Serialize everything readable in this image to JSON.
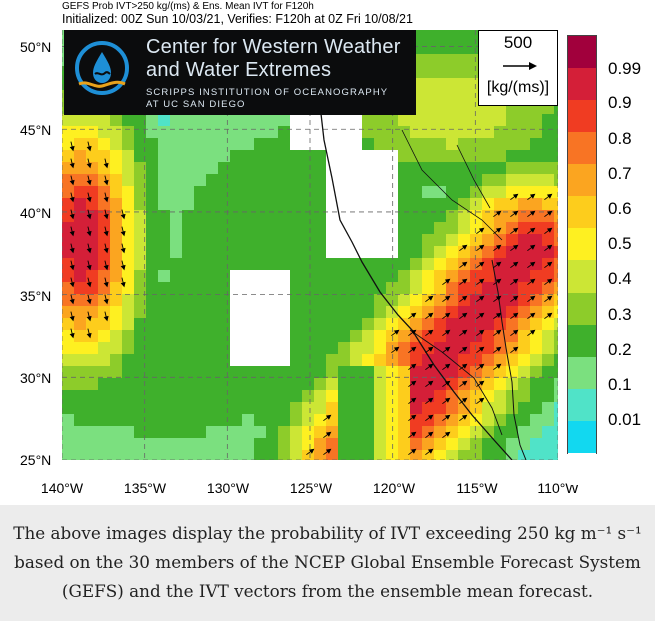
{
  "header": {
    "line1": "GEFS Prob IVT>250 kg/(ms) & Ens. Mean IVT for F120h",
    "line2": "Initialized: 00Z Sun 10/03/21, Verifies: F120h at  0Z Fri 10/08/21"
  },
  "logo": {
    "line1": "Center for Western Weather",
    "line2": "and Water Extremes",
    "line3": "SCRIPPS INSTITUTION  OF OCEANOGRAPHY",
    "line4": "AT UC SAN DIEGO",
    "icon": "water-drop-wave-icon"
  },
  "reference_vector": {
    "value": "500",
    "unit": "[kg/(ms)]"
  },
  "colorbar": {
    "labels": [
      "0.99",
      "0.9",
      "0.8",
      "0.7",
      "0.6",
      "0.5",
      "0.4",
      "0.3",
      "0.2",
      "0.1",
      "0.01"
    ],
    "colors": [
      "#a1003c",
      "#d41f38",
      "#f03c22",
      "#f87424",
      "#fba520",
      "#fdcd1c",
      "#fef021",
      "#cce635",
      "#8dcc2a",
      "#3fb02c",
      "#7be07f",
      "#50e3c8",
      "#12d8f0"
    ],
    "below_min_color": "#ffffff"
  },
  "map": {
    "lat_labels": [
      "50°N",
      "45°N",
      "40°N",
      "35°N",
      "30°N",
      "25°N"
    ],
    "lon_labels": [
      "140°W",
      "135°W",
      "130°W",
      "125°W",
      "120°W",
      "115°W",
      "110°W"
    ],
    "lat_range": [
      25,
      51
    ],
    "lon_range": [
      -140,
      -110
    ]
  },
  "caption": {
    "text": "The above images display the probability of IVT exceeding 250 kg m⁻¹ s⁻¹ based on the 30 members of the NCEP Global Ensemble Forecast System (GEFS) and the IVT vectors from the ensemble mean forecast."
  }
}
